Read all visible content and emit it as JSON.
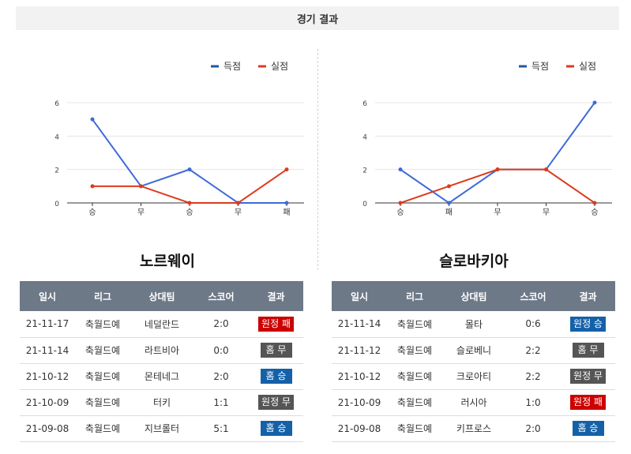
{
  "header": {
    "title": "경기 결과"
  },
  "colors": {
    "scored": "#3f6ad8",
    "conceded": "#dd3b1b",
    "legend_scored": "#1e5aa0",
    "win": "#1561a8",
    "lose": "#cc0000",
    "draw": "#555555"
  },
  "chart_data": [
    {
      "type": "line",
      "categories": [
        "승",
        "무",
        "승",
        "무",
        "패"
      ],
      "series": [
        {
          "name": "득점",
          "values": [
            5,
            1,
            2,
            0,
            0
          ]
        },
        {
          "name": "실점",
          "values": [
            1,
            1,
            0,
            0,
            2
          ]
        }
      ],
      "yticks": [
        0,
        2,
        4,
        6
      ],
      "ylim": [
        0,
        6
      ],
      "legend_position": "top-right",
      "grid": true
    },
    {
      "type": "line",
      "categories": [
        "승",
        "패",
        "무",
        "무",
        "승"
      ],
      "series": [
        {
          "name": "득점",
          "values": [
            2,
            0,
            2,
            2,
            6
          ]
        },
        {
          "name": "실점",
          "values": [
            0,
            1,
            2,
            2,
            0
          ]
        }
      ],
      "yticks": [
        0,
        2,
        4,
        6
      ],
      "ylim": [
        0,
        6
      ],
      "legend_position": "top-right",
      "grid": true
    }
  ],
  "teams": [
    {
      "name": "노르웨이",
      "columns": [
        "일시",
        "리그",
        "상대팀",
        "스코어",
        "결과"
      ],
      "rows": [
        {
          "date": "21-11-17",
          "league": "축월드예",
          "opponent": "네덜란드",
          "score": "2:0",
          "result": "원정 패",
          "type": "lose"
        },
        {
          "date": "21-11-14",
          "league": "축월드예",
          "opponent": "라트비아",
          "score": "0:0",
          "result": "홈 무",
          "type": "draw"
        },
        {
          "date": "21-10-12",
          "league": "축월드예",
          "opponent": "몬테네그",
          "score": "2:0",
          "result": "홈 승",
          "type": "win"
        },
        {
          "date": "21-10-09",
          "league": "축월드예",
          "opponent": "터키",
          "score": "1:1",
          "result": "원정 무",
          "type": "draw"
        },
        {
          "date": "21-09-08",
          "league": "축월드예",
          "opponent": "지브롤터",
          "score": "5:1",
          "result": "홈 승",
          "type": "win"
        }
      ]
    },
    {
      "name": "슬로바키아",
      "columns": [
        "일시",
        "리그",
        "상대팀",
        "스코어",
        "결과"
      ],
      "rows": [
        {
          "date": "21-11-14",
          "league": "축월드예",
          "opponent": "몰타",
          "score": "0:6",
          "result": "원정 승",
          "type": "win"
        },
        {
          "date": "21-11-12",
          "league": "축월드예",
          "opponent": "슬로베니",
          "score": "2:2",
          "result": "홈 무",
          "type": "draw"
        },
        {
          "date": "21-10-12",
          "league": "축월드예",
          "opponent": "크로아티",
          "score": "2:2",
          "result": "원정 무",
          "type": "draw"
        },
        {
          "date": "21-10-09",
          "league": "축월드예",
          "opponent": "러시아",
          "score": "1:0",
          "result": "원정 패",
          "type": "lose"
        },
        {
          "date": "21-09-08",
          "league": "축월드예",
          "opponent": "키프로스",
          "score": "2:0",
          "result": "홈 승",
          "type": "win"
        }
      ]
    }
  ]
}
